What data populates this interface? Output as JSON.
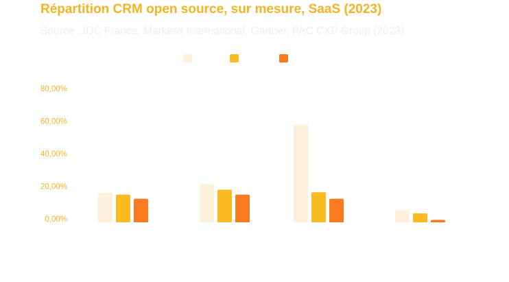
{
  "chart_data": {
    "type": "bar",
    "title": "Répartition CRM open source, sur mesure, SaaS (2023)",
    "subtitle": "Source : IDC France, Markess International, Gartner, PAC CXP Group (2023)",
    "categories": [
      "",
      "",
      "",
      ""
    ],
    "series": [
      {
        "values": [
          18,
          23.5,
          60,
          7.5
        ]
      },
      {
        "values": [
          17,
          20,
          18.5,
          5.5
        ]
      },
      {
        "values": [
          14.5,
          17,
          14.5,
          1.5
        ]
      }
    ],
    "colors": [
      "#fdf1dc",
      "#f9ba22",
      "#f97a1f"
    ],
    "yticks": [
      "0,00%",
      "20,00%",
      "40,00%",
      "60,00%",
      "80,00%"
    ],
    "ylim": [
      0,
      80
    ],
    "tick_color": "#f5b324",
    "grid": false,
    "legend": "top-center"
  }
}
